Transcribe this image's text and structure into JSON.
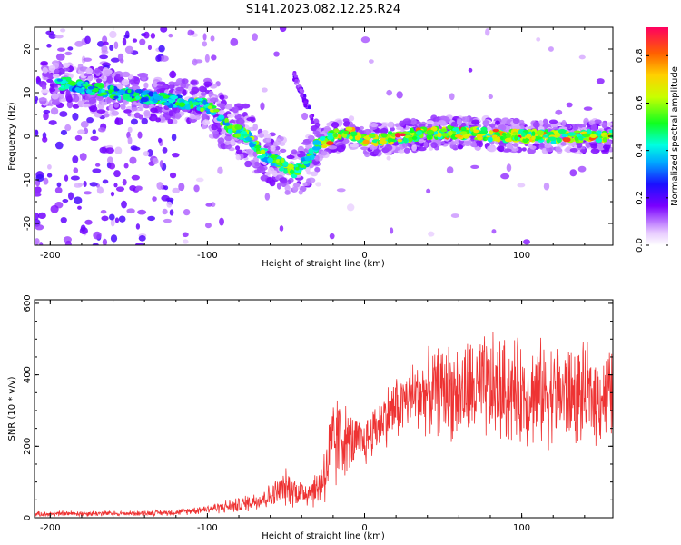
{
  "figure": {
    "title": "S141.2023.082.12.25.R24"
  },
  "chart_data": [
    {
      "type": "heatmap",
      "xlabel": "Height of straight line (km)",
      "ylabel": "Frequency (Hz)",
      "xlim": [
        -210,
        158
      ],
      "ylim": [
        -25,
        25
      ],
      "xticks": [
        -200,
        -100,
        0,
        100
      ],
      "yticks": [
        -20,
        -10,
        0,
        10,
        20
      ],
      "colorbar": {
        "label": "Normalized spectral amplitude",
        "range": [
          0.0,
          0.92
        ],
        "ticks": [
          0.0,
          0.2,
          0.4,
          0.6,
          0.8
        ]
      },
      "ridge": {
        "description_points_x": [
          -190,
          -160,
          -140,
          -120,
          -100,
          -85,
          -75,
          -65,
          -55,
          -45,
          -40,
          -35,
          -30,
          -20,
          -10,
          0,
          50,
          100,
          158
        ],
        "description_points_y": [
          12,
          10,
          9,
          8,
          7,
          2,
          0,
          -4,
          -6,
          -8,
          -7,
          -5,
          -2,
          0,
          1,
          -1,
          1,
          0,
          0
        ],
        "peak_amplitude": 0.92
      },
      "grid": false
    },
    {
      "type": "line",
      "xlabel": "Height of straight line (km)",
      "ylabel": "SNR (10 * v/v)",
      "xlim": [
        -210,
        158
      ],
      "ylim": [
        0,
        610
      ],
      "xticks": [
        -200,
        -100,
        0,
        100
      ],
      "yticks": [
        0,
        200,
        400,
        600
      ],
      "series": [
        {
          "color": "#ee3333",
          "x": [
            -210,
            -180,
            -150,
            -120,
            -100,
            -80,
            -60,
            -50,
            -40,
            -30,
            -25,
            -20,
            -15,
            -10,
            0,
            10,
            20,
            30,
            40,
            50,
            60,
            80,
            100,
            120,
            140,
            158
          ],
          "mean": [
            10,
            12,
            12,
            15,
            25,
            35,
            60,
            85,
            70,
            80,
            130,
            200,
            230,
            210,
            210,
            270,
            310,
            340,
            350,
            360,
            350,
            360,
            350,
            350,
            340,
            345
          ],
          "spread": [
            8,
            10,
            8,
            10,
            15,
            25,
            40,
            60,
            50,
            60,
            120,
            180,
            140,
            100,
            80,
            90,
            110,
            120,
            130,
            150,
            170,
            180,
            170,
            170,
            160,
            150
          ]
        }
      ],
      "grid": false
    }
  ]
}
